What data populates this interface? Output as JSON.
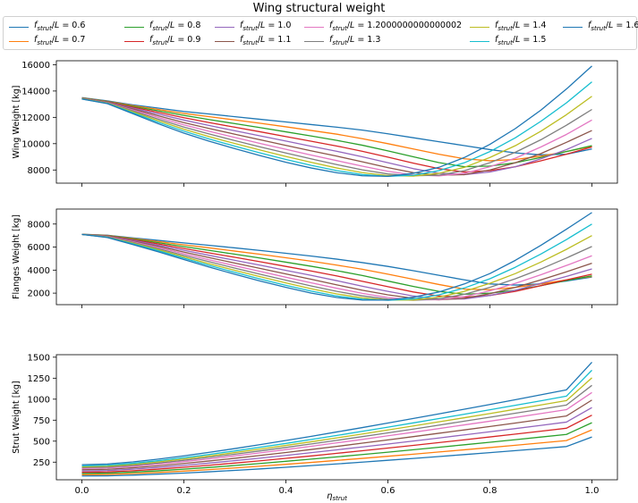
{
  "chart_data": {
    "type": "line",
    "title": "Wing structural weight",
    "legend": {
      "placement": "top",
      "entries": [
        "f_strut/L = 0.6",
        "f_strut/L = 0.7",
        "f_strut/L = 0.8",
        "f_strut/L = 0.9",
        "f_strut/L = 1.0",
        "f_strut/L = 1.1",
        "f_strut/L = 1.2000000000000002",
        "f_strut/L = 1.3",
        "f_strut/L = 1.4",
        "f_strut/L = 1.5",
        "f_strut/L = 1.6"
      ],
      "ratios": [
        "0.6",
        "0.7",
        "0.8",
        "0.9",
        "1.0",
        "1.1",
        "1.2000000000000002",
        "1.3",
        "1.4",
        "1.5",
        "1.6"
      ]
    },
    "colors": [
      "#1f77b4",
      "#ff7f0e",
      "#2ca02c",
      "#d62728",
      "#9467bd",
      "#8c564b",
      "#e377c2",
      "#7f7f7f",
      "#bcbd22",
      "#17becf",
      "#1f77b4"
    ],
    "xlabel": "η_strut",
    "xlim": [
      -0.05,
      1.05
    ],
    "xticks": [
      "0.0",
      "0.2",
      "0.4",
      "0.6",
      "0.8",
      "1.0"
    ],
    "x": [
      0.0,
      0.05,
      0.1,
      0.15,
      0.2,
      0.25,
      0.3,
      0.35,
      0.4,
      0.45,
      0.5,
      0.55,
      0.6,
      0.65,
      0.7,
      0.75,
      0.8,
      0.85,
      0.9,
      0.95,
      1.0
    ],
    "grid": false,
    "panels": [
      {
        "ylabel": "Wing Weight [kg]",
        "ylim": [
          7000,
          16300
        ],
        "yticks": [
          "8000",
          "10000",
          "12000",
          "14000",
          "16000"
        ],
        "series": [
          {
            "name": "f_strut/L = 0.6",
            "values": [
              13500,
              13250,
              12950,
              12700,
              12450,
              12250,
              12050,
              11850,
              11650,
              11450,
              11250,
              11030,
              10750,
              10450,
              10150,
              9850,
              9550,
              9300,
              9150,
              9200,
              9600
            ]
          },
          {
            "name": "f_strut/L = 0.7",
            "values": [
              13480,
              13220,
              12890,
              12600,
              12300,
              12050,
              11800,
              11550,
              11280,
              11000,
              10720,
              10380,
              10000,
              9600,
              9200,
              8850,
              8700,
              8800,
              9050,
              9400,
              9800
            ]
          },
          {
            "name": "f_strut/L = 0.8",
            "values": [
              13470,
              13200,
              12830,
              12500,
              12150,
              11830,
              11520,
              11220,
              10900,
              10580,
              10250,
              9880,
              9450,
              9000,
              8560,
              8250,
              8300,
              8550,
              8950,
              9400,
              9850
            ]
          },
          {
            "name": "f_strut/L = 0.9",
            "values": [
              13460,
              13180,
              12770,
              12380,
              11970,
              11600,
              11250,
              10900,
              10540,
              10180,
              9820,
              9420,
              8980,
              8520,
              8100,
              7850,
              7950,
              8250,
              8700,
              9200,
              9750
            ]
          },
          {
            "name": "f_strut/L = 1.0",
            "values": [
              13450,
              13160,
              12700,
              12250,
              11790,
              11380,
              10980,
              10590,
              10200,
              9800,
              9420,
              9000,
              8550,
              8100,
              7750,
              7650,
              7850,
              8250,
              8850,
              9550,
              10400
            ]
          },
          {
            "name": "f_strut/L = 1.1",
            "values": [
              13440,
              13140,
              12630,
              12120,
              11600,
              11150,
              10720,
              10290,
              9870,
              9450,
              9050,
              8620,
              8180,
              7800,
              7600,
              7650,
              8000,
              8550,
              9250,
              10100,
              11000
            ]
          },
          {
            "name": "f_strut/L = 1.2000000000000002",
            "values": [
              13430,
              13120,
              12560,
              11990,
              11430,
              10940,
              10470,
              10010,
              9570,
              9130,
              8710,
              8290,
              7900,
              7620,
              7550,
              7750,
              8250,
              8900,
              9750,
              10700,
              11800
            ]
          },
          {
            "name": "f_strut/L = 1.3",
            "values": [
              13420,
              13100,
              12490,
              11860,
              11260,
              10730,
              10230,
              9750,
              9290,
              8840,
              8410,
              8010,
              7700,
              7560,
              7600,
              7950,
              8550,
              9350,
              10300,
              11400,
              12600
            ]
          },
          {
            "name": "f_strut/L = 1.4",
            "values": [
              13410,
              13080,
              12420,
              11740,
              11100,
              10530,
              10010,
              9510,
              9030,
              8580,
              8150,
              7800,
              7580,
              7540,
              7750,
              8200,
              8950,
              9850,
              10950,
              12200,
              13600
            ]
          },
          {
            "name": "f_strut/L = 1.5",
            "values": [
              13400,
              13060,
              12350,
              11620,
              10950,
              10350,
              9810,
              9290,
              8800,
              8350,
              7950,
              7650,
              7520,
              7600,
              7950,
              8550,
              9400,
              10450,
              11700,
              13100,
              14700
            ]
          },
          {
            "name": "f_strut/L = 1.6",
            "values": [
              13390,
              13040,
              12280,
              11510,
              10800,
              10180,
              9620,
              9090,
              8590,
              8150,
              7790,
              7560,
              7520,
              7750,
              8200,
              8950,
              9950,
              11150,
              12550,
              14150,
              15900
            ]
          }
        ]
      },
      {
        "ylabel": "Flanges Weight [kg]",
        "ylim": [
          1000,
          9300
        ],
        "yticks": [
          "2000",
          "4000",
          "6000",
          "8000"
        ],
        "series": [
          {
            "name": "f_strut/L = 0.6",
            "values": [
              7120,
              7030,
              6800,
              6580,
              6360,
              6150,
              5930,
              5700,
              5460,
              5220,
              4950,
              4650,
              4320,
              3950,
              3550,
              3150,
              2800,
              2700,
              2800,
              3050,
              3400
            ]
          },
          {
            "name": "f_strut/L = 0.7",
            "values": [
              7110,
              7010,
              6750,
              6480,
              6200,
              5930,
              5650,
              5370,
              5070,
              4770,
              4430,
              4070,
              3650,
              3200,
              2750,
              2350,
              2300,
              2500,
              2800,
              3150,
              3450
            ]
          },
          {
            "name": "f_strut/L = 0.8",
            "values": [
              7100,
              6990,
              6700,
              6380,
              6040,
              5710,
              5380,
              5040,
              4690,
              4330,
              3950,
              3530,
              3050,
              2580,
              2150,
              1900,
              2000,
              2250,
              2650,
              3100,
              3500
            ]
          },
          {
            "name": "f_strut/L = 0.9",
            "values": [
              7100,
              6970,
              6640,
              6270,
              5880,
              5490,
              5110,
              4720,
              4320,
              3920,
              3490,
              3030,
              2560,
              2100,
              1750,
              1650,
              1800,
              2150,
              2650,
              3150,
              3650
            ]
          },
          {
            "name": "f_strut/L = 1.0",
            "values": [
              7100,
              6950,
              6580,
              6160,
              5720,
              5280,
              4850,
              4420,
              3980,
              3540,
              3080,
              2600,
              2150,
              1750,
              1500,
              1500,
              1800,
              2250,
              2850,
              3450,
              4100
            ]
          },
          {
            "name": "f_strut/L = 1.1",
            "values": [
              7100,
              6930,
              6520,
              6060,
              5570,
              5080,
              4610,
              4140,
              3670,
              3200,
              2720,
              2250,
              1850,
              1550,
              1420,
              1550,
              1950,
              2500,
              3150,
              3850,
              4600
            ]
          },
          {
            "name": "f_strut/L = 1.2000000000000002",
            "values": [
              7100,
              6910,
              6460,
              5960,
              5420,
              4890,
              4380,
              3880,
              3380,
              2890,
              2420,
              1980,
              1620,
              1420,
              1430,
              1700,
              2200,
              2850,
              3600,
              4400,
              5250
            ]
          },
          {
            "name": "f_strut/L = 1.3",
            "values": [
              7100,
              6890,
              6400,
              5860,
              5280,
              4720,
              4170,
              3640,
              3120,
              2620,
              2150,
              1760,
              1480,
              1380,
              1500,
              1900,
              2500,
              3250,
              4100,
              5050,
              6050
            ]
          },
          {
            "name": "f_strut/L = 1.4",
            "values": [
              7100,
              6870,
              6340,
              5770,
              5150,
              4550,
              3980,
              3420,
              2890,
              2380,
              1930,
              1590,
              1400,
              1400,
              1650,
              2150,
              2850,
              3700,
              4700,
              5800,
              7000
            ]
          },
          {
            "name": "f_strut/L = 1.5",
            "values": [
              7100,
              6850,
              6280,
              5680,
              5030,
              4400,
              3800,
              3220,
              2680,
              2170,
              1750,
              1470,
              1380,
              1500,
              1850,
              2450,
              3250,
              4250,
              5400,
              6650,
              8000
            ]
          },
          {
            "name": "f_strut/L = 1.6",
            "values": [
              7100,
              6830,
              6220,
              5590,
              4920,
              4260,
              3640,
              3050,
              2500,
              2000,
              1620,
              1400,
              1400,
              1650,
              2100,
              2800,
              3700,
              4850,
              6150,
              7550,
              9000
            ]
          }
        ]
      },
      {
        "ylabel": "Strut Weight [kg]",
        "ylim": [
          40,
          1530
        ],
        "yticks": [
          "250",
          "500",
          "750",
          "1000",
          "1250",
          "1500"
        ],
        "series": [
          {
            "name": "f_strut/L = 0.6",
            "values": [
              85,
              87,
              95,
              107,
              120,
              135,
              152,
              170,
              189,
              209,
              229,
              250,
              272,
              294,
              317,
              340,
              363,
              387,
              411,
              436,
              550
            ]
          },
          {
            "name": "f_strut/L = 0.7",
            "values": [
              100,
              103,
              113,
              127,
              143,
              161,
              181,
              202,
              224,
              247,
              271,
              295,
              320,
              345,
              371,
              397,
              424,
              451,
              479,
              507,
              635
            ]
          },
          {
            "name": "f_strut/L = 0.8",
            "values": [
              115,
              119,
              131,
              147,
              166,
              187,
              210,
              234,
              260,
              286,
              313,
              341,
              369,
              398,
              427,
              457,
              487,
              518,
              549,
              580,
              720
            ]
          },
          {
            "name": "f_strut/L = 0.9",
            "values": [
              130,
              134,
              148,
              167,
              189,
              213,
              239,
              266,
              295,
              324,
              355,
              386,
              418,
              450,
              483,
              516,
              550,
              584,
              619,
              654,
              810
            ]
          },
          {
            "name": "f_strut/L = 1.0",
            "values": [
              145,
              150,
              166,
              187,
              212,
              239,
              268,
              298,
              330,
              363,
              397,
              431,
              466,
              502,
              538,
              575,
              612,
              650,
              688,
              727,
              900
            ]
          },
          {
            "name": "f_strut/L = 1.1",
            "values": [
              160,
              165,
              183,
              206,
              234,
              264,
              296,
              330,
              365,
              401,
              438,
              476,
              515,
              554,
              594,
              634,
              675,
              716,
              758,
              800,
              990
            ]
          },
          {
            "name": "f_strut/L = 1.2000000000000002",
            "values": [
              175,
              181,
              200,
              226,
              256,
              289,
              324,
              361,
              400,
              439,
              480,
              521,
              564,
              606,
              650,
              694,
              738,
              783,
              829,
              875,
              1080
            ]
          },
          {
            "name": "f_strut/L = 1.3",
            "values": [
              185,
              192,
              212,
              240,
              272,
              307,
              345,
              384,
              425,
              467,
              510,
              554,
              599,
              644,
              691,
              738,
              785,
              833,
              881,
              930,
              1165
            ]
          },
          {
            "name": "f_strut/L = 1.4",
            "values": [
              195,
              202,
              224,
              253,
              287,
              324,
              364,
              406,
              449,
              493,
              539,
              585,
              633,
              681,
              730,
              779,
              829,
              880,
              931,
              983,
              1255
            ]
          },
          {
            "name": "f_strut/L = 1.5",
            "values": [
              205,
              213,
              236,
              267,
              303,
              342,
              384,
              428,
              473,
              520,
              568,
              617,
              667,
              718,
              769,
              821,
              874,
              927,
              981,
              1036,
              1345
            ]
          },
          {
            "name": "f_strut/L = 1.6",
            "values": [
              220,
              228,
              253,
              286,
              325,
              367,
              412,
              459,
              508,
              558,
              610,
              662,
              716,
              770,
              825,
              881,
              937,
              994,
              1052,
              1111,
              1440
            ]
          }
        ]
      }
    ]
  }
}
